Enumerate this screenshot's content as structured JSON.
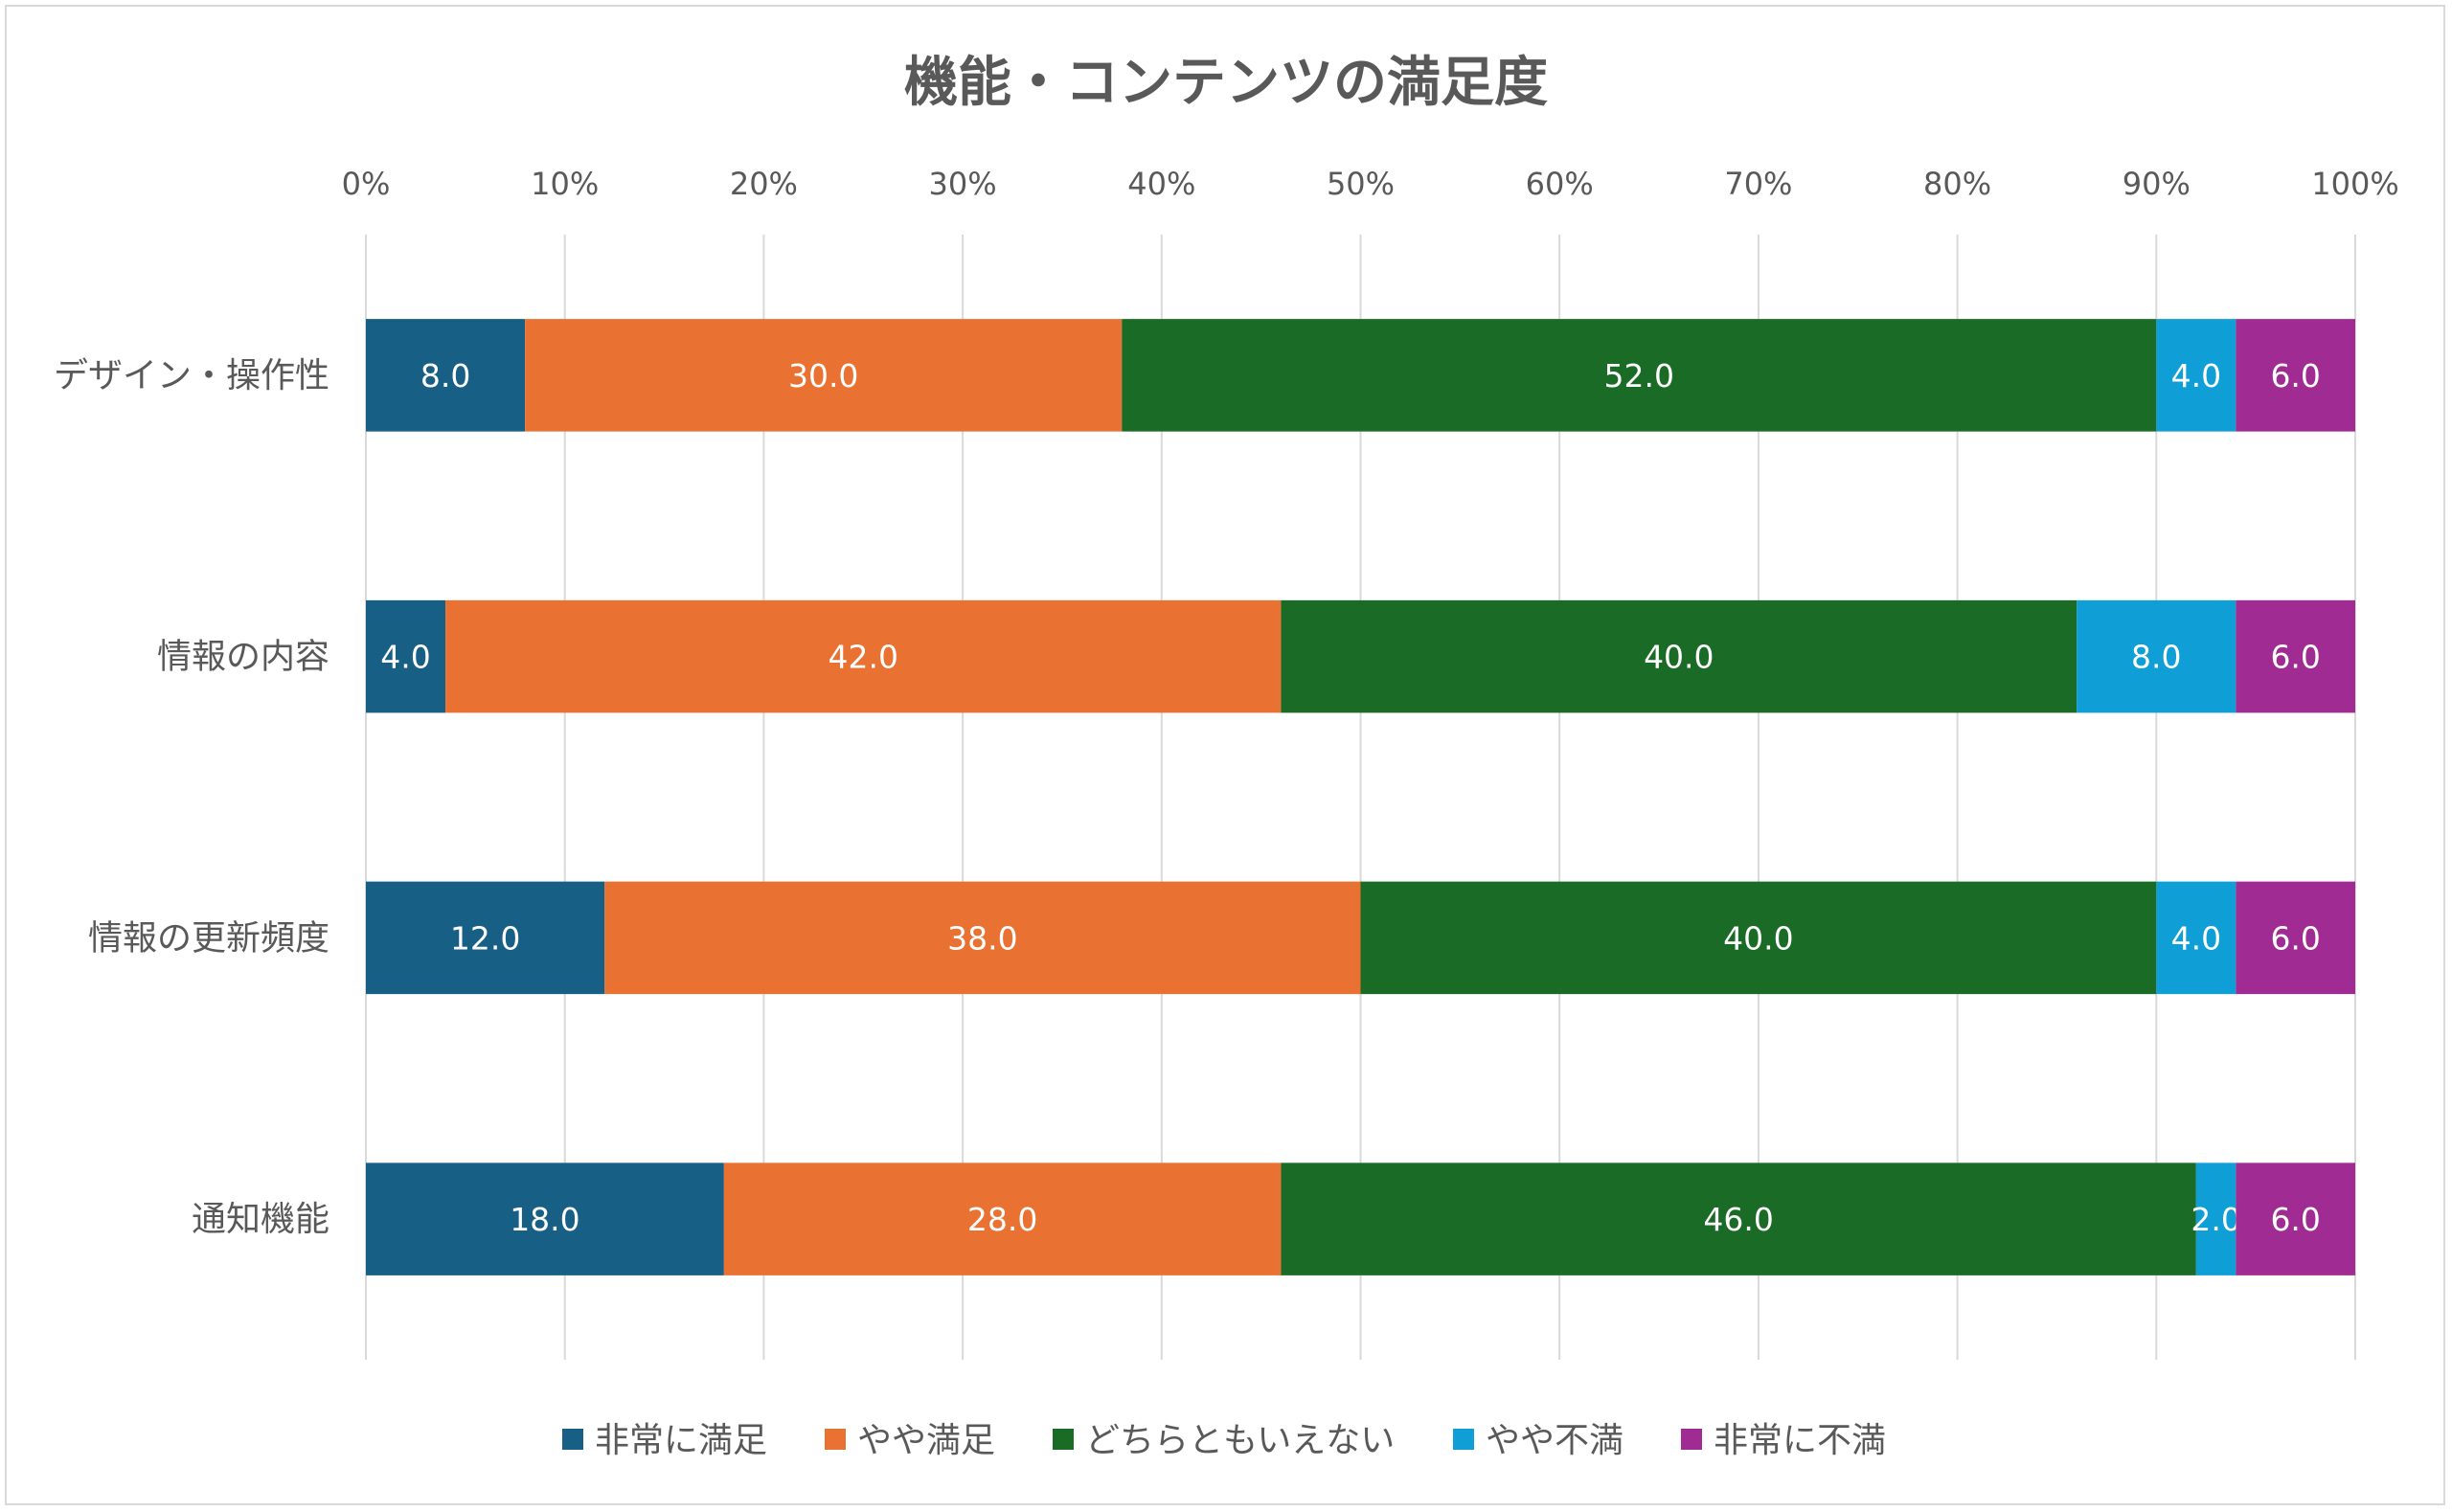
{
  "chart_data": {
    "type": "bar",
    "orientation": "horizontal",
    "stacked": "percent",
    "title": "機能・コンテンツの満足度",
    "categories": [
      "デザイン・操作性",
      "情報の内容",
      "情報の更新頻度",
      "通知機能"
    ],
    "series": [
      {
        "name": "非常に満足",
        "color": "#175f84",
        "values": [
          8.0,
          4.0,
          12.0,
          18.0
        ]
      },
      {
        "name": "やや満足",
        "color": "#e97132",
        "values": [
          30.0,
          42.0,
          38.0,
          28.0
        ]
      },
      {
        "name": "どちらともいえない",
        "color": "#1a6b26",
        "values": [
          52.0,
          40.0,
          40.0,
          46.0
        ]
      },
      {
        "name": "やや不満",
        "color": "#0f9ed5",
        "values": [
          4.0,
          8.0,
          4.0,
          2.0
        ]
      },
      {
        "name": "非常に不満",
        "color": "#a02b93",
        "values": [
          6.0,
          6.0,
          6.0,
          6.0
        ]
      }
    ],
    "xlim": [
      0,
      100
    ],
    "xticks": [
      "0%",
      "10%",
      "20%",
      "30%",
      "40%",
      "50%",
      "60%",
      "70%",
      "80%",
      "90%",
      "100%"
    ],
    "axis_position": "top",
    "grid": true,
    "legend": "bottom",
    "data_labels": true
  }
}
